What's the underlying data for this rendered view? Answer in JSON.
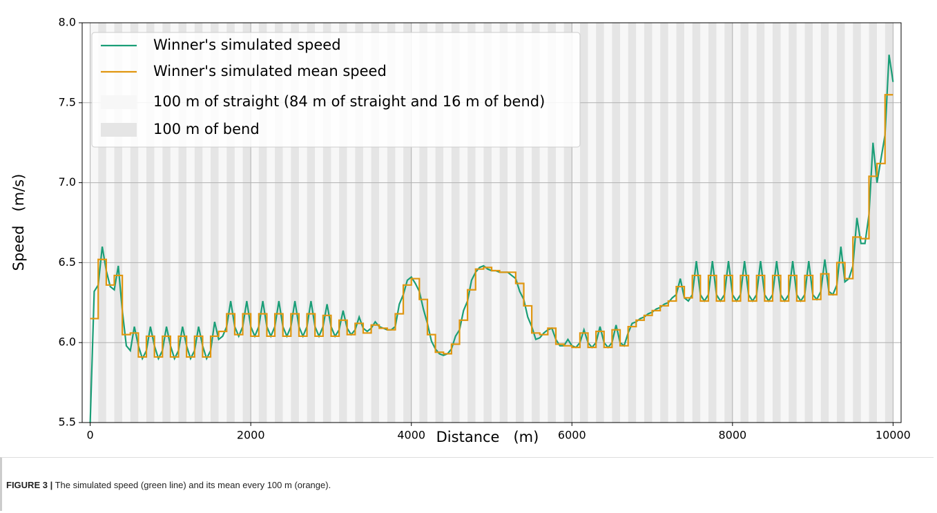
{
  "chart_data": {
    "type": "line",
    "xlabel": "Distance   (m)",
    "ylabel": "Speed   (m/s)",
    "caption_label": "FIGURE 3 |",
    "caption": "The simulated speed (green line) and its mean every 100 m (orange).",
    "xlim": [
      -100,
      10100
    ],
    "xticks": [
      0,
      2000,
      4000,
      6000,
      8000,
      10000
    ],
    "ylim": [
      5.5,
      8.0
    ],
    "yticks": [
      5.5,
      {
        "value": 6.0,
        "label": "6.0"
      },
      6.5,
      {
        "value": 7.0,
        "label": "7.0"
      },
      7.5,
      {
        "value": 8.0,
        "label": "8.0"
      }
    ],
    "grid": true,
    "legend": "upper left",
    "bands": [
      {
        "name": "100 m of straight (84 m of straight and 16 m of bend)",
        "color": "#f7f7f7"
      },
      {
        "name": "100 m of bend",
        "color": "#e5e5e5"
      }
    ],
    "series": [
      {
        "name": "Winner's simulated speed",
        "color": "#1a9e77",
        "step": false,
        "x": [
          0,
          50,
          100,
          150,
          200,
          250,
          300,
          350,
          400,
          450,
          500,
          550,
          600,
          650,
          700,
          750,
          800,
          850,
          900,
          950,
          1000,
          1050,
          1100,
          1150,
          1200,
          1250,
          1300,
          1350,
          1400,
          1450,
          1500,
          1550,
          1600,
          1650,
          1700,
          1750,
          1800,
          1850,
          1900,
          1950,
          2000,
          2050,
          2100,
          2150,
          2200,
          2250,
          2300,
          2350,
          2400,
          2450,
          2500,
          2550,
          2600,
          2650,
          2700,
          2750,
          2800,
          2850,
          2900,
          2950,
          3000,
          3050,
          3100,
          3150,
          3200,
          3250,
          3300,
          3350,
          3400,
          3450,
          3500,
          3550,
          3600,
          3650,
          3700,
          3750,
          3800,
          3850,
          3900,
          3950,
          4000,
          4050,
          4100,
          4150,
          4200,
          4250,
          4300,
          4350,
          4400,
          4450,
          4500,
          4550,
          4600,
          4650,
          4700,
          4750,
          4800,
          4850,
          4900,
          4950,
          5000,
          5050,
          5100,
          5150,
          5200,
          5250,
          5300,
          5350,
          5400,
          5450,
          5500,
          5550,
          5600,
          5650,
          5700,
          5750,
          5800,
          5850,
          5900,
          5950,
          6000,
          6050,
          6100,
          6150,
          6200,
          6250,
          6300,
          6350,
          6400,
          6450,
          6500,
          6550,
          6600,
          6650,
          6700,
          6750,
          6800,
          6850,
          6900,
          6950,
          7000,
          7050,
          7100,
          7150,
          7200,
          7250,
          7300,
          7350,
          7400,
          7450,
          7500,
          7550,
          7600,
          7650,
          7700,
          7750,
          7800,
          7850,
          7900,
          7950,
          8000,
          8050,
          8100,
          8150,
          8200,
          8250,
          8300,
          8350,
          8400,
          8450,
          8500,
          8550,
          8600,
          8650,
          8700,
          8750,
          8800,
          8850,
          8900,
          8950,
          9000,
          9050,
          9100,
          9150,
          9200,
          9250,
          9300,
          9350,
          9400,
          9450,
          9500,
          9550,
          9600,
          9650,
          9700,
          9750,
          9800,
          9850,
          9900,
          9950,
          10000
        ],
        "values": [
          5.5,
          6.32,
          6.36,
          6.6,
          6.45,
          6.35,
          6.33,
          6.48,
          6.2,
          5.98,
          5.95,
          6.1,
          5.98,
          5.9,
          5.95,
          6.1,
          5.98,
          5.9,
          5.95,
          6.1,
          5.98,
          5.9,
          5.95,
          6.1,
          5.98,
          5.9,
          5.95,
          6.1,
          5.98,
          5.9,
          5.95,
          6.13,
          6.02,
          6.04,
          6.1,
          6.26,
          6.1,
          6.04,
          6.1,
          6.26,
          6.1,
          6.04,
          6.1,
          6.26,
          6.1,
          6.04,
          6.1,
          6.26,
          6.1,
          6.04,
          6.1,
          6.26,
          6.1,
          6.04,
          6.1,
          6.26,
          6.1,
          6.04,
          6.1,
          6.24,
          6.1,
          6.04,
          6.08,
          6.2,
          6.09,
          6.05,
          6.08,
          6.16,
          6.09,
          6.07,
          6.09,
          6.13,
          6.1,
          6.09,
          6.08,
          6.08,
          6.1,
          6.24,
          6.3,
          6.39,
          6.41,
          6.37,
          6.32,
          6.21,
          6.12,
          6.01,
          5.96,
          5.93,
          5.92,
          5.93,
          5.96,
          6.04,
          6.08,
          6.2,
          6.26,
          6.39,
          6.44,
          6.47,
          6.48,
          6.46,
          6.45,
          6.45,
          6.44,
          6.44,
          6.44,
          6.42,
          6.4,
          6.32,
          6.27,
          6.16,
          6.1,
          6.02,
          6.03,
          6.06,
          6.08,
          6.09,
          6.02,
          5.98,
          5.98,
          6.02,
          5.98,
          5.97,
          6.0,
          6.08,
          6.0,
          5.97,
          6.0,
          6.1,
          6.0,
          5.97,
          6.0,
          6.11,
          6.0,
          5.98,
          6.06,
          6.12,
          6.13,
          6.15,
          6.16,
          6.18,
          6.19,
          6.21,
          6.22,
          6.24,
          6.25,
          6.28,
          6.3,
          6.4,
          6.28,
          6.26,
          6.3,
          6.51,
          6.3,
          6.26,
          6.3,
          6.51,
          6.3,
          6.26,
          6.3,
          6.51,
          6.3,
          6.26,
          6.3,
          6.51,
          6.3,
          6.26,
          6.3,
          6.51,
          6.3,
          6.26,
          6.3,
          6.51,
          6.3,
          6.26,
          6.3,
          6.51,
          6.3,
          6.26,
          6.3,
          6.51,
          6.3,
          6.27,
          6.32,
          6.52,
          6.32,
          6.3,
          6.36,
          6.6,
          6.38,
          6.4,
          6.48,
          6.78,
          6.62,
          6.62,
          6.8,
          7.25,
          7.0,
          7.15,
          7.3,
          7.8,
          7.63
        ]
      },
      {
        "name": "Winner's simulated mean speed",
        "color": "#e0960f",
        "step": true,
        "x": [
          0,
          100,
          200,
          300,
          400,
          500,
          600,
          700,
          800,
          900,
          1000,
          1100,
          1200,
          1300,
          1400,
          1500,
          1600,
          1700,
          1800,
          1900,
          2000,
          2100,
          2200,
          2300,
          2400,
          2500,
          2600,
          2700,
          2800,
          2900,
          3000,
          3100,
          3200,
          3300,
          3400,
          3500,
          3600,
          3700,
          3800,
          3900,
          4000,
          4100,
          4200,
          4300,
          4400,
          4500,
          4600,
          4700,
          4800,
          4900,
          5000,
          5100,
          5200,
          5300,
          5400,
          5500,
          5600,
          5700,
          5800,
          5900,
          6000,
          6100,
          6200,
          6300,
          6400,
          6500,
          6600,
          6700,
          6800,
          6900,
          7000,
          7100,
          7200,
          7300,
          7400,
          7500,
          7600,
          7700,
          7800,
          7900,
          8000,
          8100,
          8200,
          8300,
          8400,
          8500,
          8600,
          8700,
          8800,
          8900,
          9000,
          9100,
          9200,
          9300,
          9400,
          9500,
          9600,
          9700,
          9800,
          9900,
          10000
        ],
        "values": [
          6.15,
          6.52,
          6.36,
          6.42,
          6.05,
          6.06,
          5.91,
          6.04,
          5.91,
          6.04,
          5.91,
          6.04,
          5.91,
          6.04,
          5.91,
          6.04,
          6.07,
          6.18,
          6.05,
          6.18,
          6.04,
          6.18,
          6.04,
          6.18,
          6.04,
          6.18,
          6.04,
          6.18,
          6.04,
          6.17,
          6.04,
          6.14,
          6.05,
          6.12,
          6.06,
          6.11,
          6.09,
          6.08,
          6.18,
          6.36,
          6.4,
          6.27,
          6.05,
          5.94,
          5.93,
          5.99,
          6.14,
          6.33,
          6.46,
          6.47,
          6.45,
          6.44,
          6.44,
          6.37,
          6.23,
          6.06,
          6.05,
          6.09,
          5.99,
          5.98,
          5.97,
          6.06,
          5.97,
          6.07,
          5.97,
          6.08,
          5.98,
          6.1,
          6.14,
          6.17,
          6.2,
          6.23,
          6.26,
          6.35,
          6.28,
          6.42,
          6.26,
          6.42,
          6.26,
          6.42,
          6.26,
          6.42,
          6.26,
          6.42,
          6.26,
          6.42,
          6.26,
          6.42,
          6.26,
          6.42,
          6.27,
          6.43,
          6.3,
          6.5,
          6.4,
          6.66,
          6.65,
          7.04,
          7.12,
          7.55,
          7.55
        ]
      }
    ]
  }
}
